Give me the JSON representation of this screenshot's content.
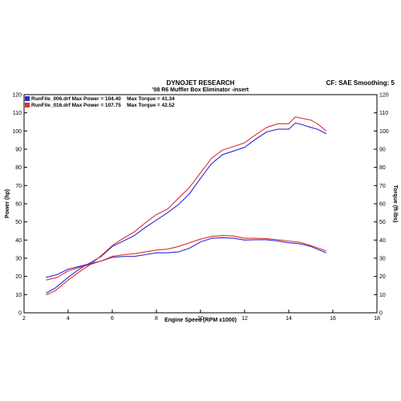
{
  "header": {
    "title": "DYNOJET RESEARCH",
    "subtitle": "'08 R6 Muffler Box Eliminator -insert",
    "cf_label": "CF: SAE",
    "smoothing_label": "Smoothing: 5"
  },
  "legend": [
    {
      "file": "RunFile_006.drf",
      "max_power_label": "Max Power =",
      "max_power": "104.40",
      "max_torque_label": "Max Torque =",
      "max_torque": "41.34",
      "color": "#2b2bd6"
    },
    {
      "file": "RunFile_016.drf",
      "max_power_label": "Max Power =",
      "max_power": "107.75",
      "max_torque_label": "Max Torque =",
      "max_torque": "42.52",
      "color": "#e03030"
    }
  ],
  "chart_data": {
    "type": "line",
    "xlabel": "Engine Speed (RPM x1000)",
    "ylabel_left": "Power (hp)",
    "ylabel_right": "Torque (ft-lbs)",
    "xlim": [
      2,
      18
    ],
    "ylim": [
      0,
      120
    ],
    "xticks": [
      2,
      4,
      6,
      8,
      10,
      12,
      14,
      16,
      18
    ],
    "yticks": [
      0,
      10,
      20,
      30,
      40,
      50,
      60,
      70,
      80,
      90,
      100,
      110,
      120
    ],
    "grid": false,
    "colors": {
      "run006": "#2b2bd6",
      "run016": "#e03030"
    },
    "series": [
      {
        "name": "RunFile_006.drf",
        "color": "#2b2bd6",
        "x": [
          3.0,
          3.4,
          4.0,
          4.5,
          5.0,
          5.5,
          6.0,
          6.5,
          7.0,
          7.5,
          8.0,
          8.5,
          9.0,
          9.5,
          10.0,
          10.5,
          11.0,
          11.5,
          12.0,
          12.5,
          13.0,
          13.5,
          14.0,
          14.3,
          14.6,
          15.0,
          15.3,
          15.7
        ],
        "y": [
          10.8,
          13.5,
          19.5,
          24.0,
          27.5,
          31.0,
          36.5,
          39.5,
          42.5,
          47.0,
          51.0,
          55.0,
          59.5,
          65.5,
          74.0,
          82.0,
          87.0,
          89.0,
          91.0,
          95.5,
          99.5,
          101.0,
          101.0,
          104.4,
          103.5,
          102.0,
          101.0,
          98.5
        ]
      },
      {
        "name": "RunFile_016.drf",
        "color": "#e03030",
        "x": [
          3.0,
          3.4,
          4.0,
          4.5,
          5.0,
          5.5,
          6.0,
          6.5,
          7.0,
          7.5,
          8.0,
          8.5,
          9.0,
          9.5,
          10.0,
          10.5,
          11.0,
          11.5,
          12.0,
          12.5,
          13.0,
          13.5,
          14.0,
          14.3,
          14.6,
          15.0,
          15.3,
          15.7
        ],
        "y": [
          9.8,
          12.0,
          18.0,
          22.5,
          26.5,
          31.5,
          37.0,
          41.0,
          44.5,
          49.5,
          54.0,
          57.0,
          63.0,
          69.0,
          77.0,
          85.0,
          89.5,
          91.5,
          93.5,
          98.0,
          102.0,
          104.0,
          104.0,
          107.75,
          107.0,
          106.0,
          104.0,
          100.0
        ]
      },
      {
        "name": "RunFile_006.drf",
        "color": "#2b2bd6",
        "x": [
          3.0,
          3.5,
          4.0,
          4.5,
          5.0,
          5.5,
          6.0,
          6.5,
          7.0,
          7.5,
          8.0,
          8.5,
          9.0,
          9.5,
          10.0,
          10.5,
          11.0,
          11.5,
          12.0,
          12.5,
          13.0,
          13.5,
          14.0,
          14.5,
          15.0,
          15.7
        ],
        "y": [
          19.5,
          21.0,
          24.0,
          25.5,
          27.0,
          28.5,
          30.5,
          31.0,
          31.0,
          32.0,
          33.0,
          33.0,
          33.5,
          35.5,
          39.0,
          41.0,
          41.3,
          41.0,
          40.0,
          40.2,
          40.2,
          39.5,
          38.5,
          38.0,
          36.5,
          33.0
        ]
      },
      {
        "name": "RunFile_016.drf",
        "color": "#e03030",
        "x": [
          3.0,
          3.5,
          4.0,
          4.5,
          5.0,
          5.5,
          6.0,
          6.5,
          7.0,
          7.5,
          8.0,
          8.5,
          9.0,
          9.5,
          10.0,
          10.5,
          11.0,
          11.5,
          12.0,
          12.5,
          13.0,
          13.5,
          14.0,
          14.5,
          15.0,
          15.7
        ],
        "y": [
          18.0,
          19.5,
          23.0,
          25.0,
          26.5,
          28.5,
          31.0,
          32.0,
          32.5,
          33.5,
          34.5,
          35.0,
          36.5,
          38.5,
          40.5,
          42.0,
          42.5,
          42.2,
          41.0,
          41.0,
          40.8,
          40.2,
          39.5,
          38.8,
          37.0,
          34.0
        ]
      }
    ]
  }
}
